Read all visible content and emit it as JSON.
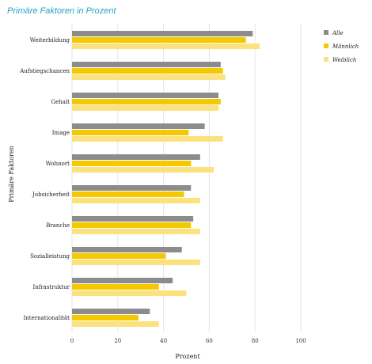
{
  "chart_data": {
    "type": "bar",
    "orientation": "horizontal",
    "title": "Primäre Faktoren in Prozent",
    "xlabel": "Prozent",
    "ylabel": "Primäre Faktoren",
    "xlim": [
      0,
      100
    ],
    "xticks": [
      "0",
      "20",
      "40",
      "60",
      "80",
      "100"
    ],
    "grid": "vertical",
    "legend": "top-right",
    "categories": [
      "Weiterbildung",
      "Aufstiegschancen",
      "Gehalt",
      "Image",
      "Wohnort",
      "Jobsicherheit",
      "Branche",
      "Sozialleistung",
      "Infrastruktur",
      "Internationalität"
    ],
    "series": [
      {
        "name": "Alle",
        "color": "#8c8c8c",
        "values": [
          79,
          65,
          64,
          58,
          56,
          52,
          53,
          48,
          44,
          34
        ]
      },
      {
        "name": "Männlich",
        "color": "#f5c800",
        "values": [
          76,
          66,
          65,
          51,
          52,
          49,
          52,
          41,
          38,
          29
        ]
      },
      {
        "name": "Weiblich",
        "color": "#fbe27e",
        "values": [
          82,
          67,
          64,
          66,
          62,
          56,
          56,
          56,
          50,
          38
        ]
      }
    ]
  }
}
